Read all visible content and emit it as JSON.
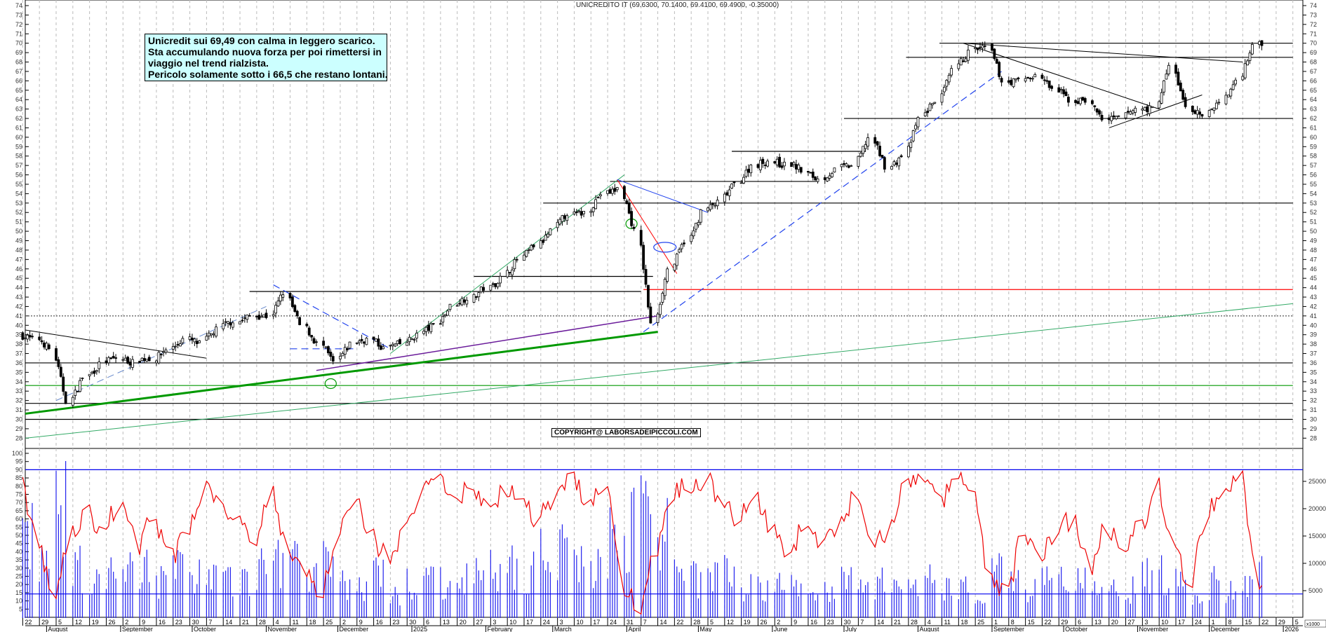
{
  "title": "UNICREDITO IT (69.6300, 70.1400, 69.4100, 69.4900, -0.35000)",
  "note": [
    "Unicredit sui 69,49 con calma in leggero scarico.",
    "Sta accumulando nuova forza per poi rimettersi in",
    "viaggio nel trend rialzista.",
    "Pericolo solamente sotto i 66,5 che restano lontani."
  ],
  "copyright": "COPYRIGHT@ LABORSADEIPICCOLI.COM",
  "volume_unit": "x1000",
  "chart_data": {
    "type": "candlestick",
    "price_ylim": [
      28,
      74
    ],
    "osc_ylim": [
      0,
      100
    ],
    "volume_ylim": [
      0,
      27000
    ],
    "grid": true,
    "week_starts": [
      "2024-07-22",
      "2024-07-29",
      "2024-08-05",
      "2024-08-12",
      "2024-08-19",
      "2024-08-26",
      "2024-09-02",
      "2024-09-09",
      "2024-09-16",
      "2024-09-23",
      "2024-09-30",
      "2024-10-07",
      "2024-10-14",
      "2024-10-21",
      "2024-10-28",
      "2024-11-04",
      "2024-11-11",
      "2024-11-18",
      "2024-11-25",
      "2024-12-02",
      "2024-12-09",
      "2024-12-16",
      "2024-12-23",
      "2024-12-30",
      "2025-01-06",
      "2025-01-13",
      "2025-01-20",
      "2025-01-27",
      "2025-02-03",
      "2025-02-10",
      "2025-02-17",
      "2025-02-24",
      "2025-03-03",
      "2025-03-10",
      "2025-03-17",
      "2025-03-24",
      "2025-03-31",
      "2025-04-07",
      "2025-04-14",
      "2025-04-21",
      "2025-04-28",
      "2025-05-05",
      "2025-05-12",
      "2025-05-19",
      "2025-05-26",
      "2025-06-02",
      "2025-06-09",
      "2025-06-16",
      "2025-06-23",
      "2025-06-30",
      "2025-07-07",
      "2025-07-14",
      "2025-07-21",
      "2025-07-28",
      "2025-08-04",
      "2025-08-11",
      "2025-08-18",
      "2025-08-25",
      "2025-09-01",
      "2025-09-08",
      "2025-09-15",
      "2025-09-22",
      "2025-09-29",
      "2025-10-06",
      "2025-10-13",
      "2025-10-20",
      "2025-10-27",
      "2025-11-03",
      "2025-11-10",
      "2025-11-17",
      "2025-11-24",
      "2025-12-01",
      "2025-12-08",
      "2025-12-15",
      "2025-12-22"
    ],
    "weekly_close": [
      38.5,
      37.5,
      32,
      34.5,
      35.8,
      36.5,
      36,
      36.5,
      37.5,
      38.5,
      38,
      39.5,
      40.5,
      41,
      41,
      43.5,
      40,
      38,
      36,
      38,
      38.5,
      37.5,
      38,
      39,
      40,
      42,
      43,
      44,
      45,
      47,
      48.5,
      50,
      52,
      52,
      54,
      54.5,
      50,
      40,
      46,
      49,
      52,
      53,
      55,
      57,
      57.5,
      57,
      56.5,
      55.5,
      56.5,
      57,
      60,
      57,
      58,
      62,
      64,
      67,
      69,
      69.5,
      66,
      66,
      66.5,
      65,
      64,
      64,
      62,
      62,
      63,
      63,
      67.5,
      63,
      62,
      64,
      66,
      70,
      69.5
    ],
    "weekly_oscillator": [
      85,
      45,
      12,
      50,
      62,
      55,
      70,
      45,
      60,
      35,
      55,
      80,
      70,
      60,
      50,
      75,
      40,
      30,
      15,
      55,
      70,
      50,
      35,
      55,
      75,
      85,
      70,
      80,
      65,
      80,
      70,
      60,
      75,
      85,
      70,
      80,
      20,
      5,
      40,
      75,
      80,
      85,
      70,
      60,
      75,
      50,
      35,
      60,
      45,
      55,
      75,
      40,
      55,
      80,
      85,
      70,
      85,
      75,
      25,
      15,
      50,
      35,
      55,
      60,
      30,
      55,
      45,
      55,
      80,
      40,
      20,
      65,
      75,
      85,
      20
    ],
    "weekly_volume": [
      14,
      10,
      18,
      9,
      6,
      7,
      8,
      9,
      7,
      8,
      9,
      7,
      6,
      7,
      8,
      10,
      12,
      8,
      9,
      6,
      5,
      7,
      4,
      6,
      7,
      6,
      8,
      7,
      8,
      9,
      8,
      11,
      12,
      10,
      9,
      13,
      15,
      25,
      14,
      8,
      7,
      8,
      9,
      6,
      5,
      6,
      5,
      6,
      5,
      6,
      8,
      6,
      5,
      6,
      7,
      5,
      6,
      5,
      9,
      6,
      5,
      6,
      7,
      6,
      5,
      6,
      5,
      7,
      8,
      6,
      4,
      6,
      5,
      7,
      9
    ],
    "levels": [
      {
        "price": 36,
        "color": "#000000",
        "from": "2024-07-22",
        "to": "2026-01-05"
      },
      {
        "price": 31.7,
        "color": "#000000",
        "from": "2024-07-22",
        "to": "2026-01-05"
      },
      {
        "price": 30,
        "color": "#000000",
        "from": "2024-07-22",
        "to": "2026-01-05"
      },
      {
        "price": 33.6,
        "color": "#009900",
        "from": "2024-07-22",
        "to": "2026-01-05"
      },
      {
        "price": 41,
        "color": "#555555",
        "from": "2024-07-22",
        "to": "2026-01-05",
        "dash": true
      },
      {
        "price": 43.8,
        "color": "#ff0000",
        "from": "2025-04-08",
        "to": "2026-01-05"
      },
      {
        "price": 43.6,
        "color": "#000000",
        "from": "2024-10-25",
        "to": "2025-04-07"
      },
      {
        "price": 45.2,
        "color": "#000000",
        "from": "2025-01-27",
        "to": "2025-04-12"
      },
      {
        "price": 53,
        "color": "#000000",
        "from": "2025-02-25",
        "to": "2026-01-05"
      },
      {
        "price": 55.3,
        "color": "#000000",
        "from": "2025-03-25",
        "to": "2025-06-20"
      },
      {
        "price": 58.5,
        "color": "#000000",
        "from": "2025-05-15",
        "to": "2025-07-10"
      },
      {
        "price": 62,
        "color": "#000000",
        "from": "2025-07-01",
        "to": "2026-01-05"
      },
      {
        "price": 68.5,
        "color": "#000000",
        "from": "2025-07-27",
        "to": "2026-01-05"
      },
      {
        "price": 70,
        "color": "#000000",
        "from": "2025-08-10",
        "to": "2026-01-05"
      }
    ],
    "trendlines": [
      {
        "from": [
          "2024-07-22",
          30.6
        ],
        "to": [
          "2025-04-14",
          39.3
        ],
        "color": "#009900",
        "width": 3
      },
      {
        "from": [
          "2024-07-22",
          28
        ],
        "to": [
          "2026-01-05",
          42.3
        ],
        "color": "#33aa66",
        "width": 1
      },
      {
        "from": [
          "2024-11-22",
          35.2
        ],
        "to": [
          "2025-04-14",
          41
        ],
        "color": "#6a1b9a",
        "width": 1.5
      },
      {
        "from": [
          "2025-04-08",
          39.3
        ],
        "to": [
          "2025-09-05",
          67
        ],
        "color": "#2244ee",
        "width": 1.2,
        "dash": true
      },
      {
        "from": [
          "2024-11-04",
          44.3
        ],
        "to": [
          "2024-12-23",
          37.5
        ],
        "color": "#2244ee",
        "width": 1.2,
        "dash": true
      },
      {
        "from": [
          "2024-11-11",
          37.5
        ],
        "to": [
          "2024-12-09",
          37.5
        ],
        "color": "#2244ee",
        "width": 1.2,
        "dash": true
      },
      {
        "from": [
          "2024-07-22",
          39.5
        ],
        "to": [
          "2024-10-07",
          36.5
        ],
        "color": "#000000",
        "width": 1
      },
      {
        "from": [
          "2024-08-05",
          32
        ],
        "to": [
          "2024-11-01",
          42
        ],
        "color": "#6688cc",
        "width": 1,
        "dash": true
      },
      {
        "from": [
          "2024-12-23",
          37
        ],
        "to": [
          "2025-03-31",
          56
        ],
        "color": "#33aa66",
        "width": 1
      },
      {
        "from": [
          "2025-03-28",
          55.5
        ],
        "to": [
          "2025-04-22",
          45.5
        ],
        "color": "#ff0000",
        "width": 1
      },
      {
        "from": [
          "2025-03-28",
          55.5
        ],
        "to": [
          "2025-05-05",
          52
        ],
        "color": "#2244ee",
        "width": 1
      },
      {
        "from": [
          "2025-08-20",
          70
        ],
        "to": [
          "2025-11-10",
          63
        ],
        "color": "#000000",
        "width": 1
      },
      {
        "from": [
          "2025-08-20",
          70
        ],
        "to": [
          "2025-12-15",
          68
        ],
        "color": "#000000",
        "width": 1
      },
      {
        "from": [
          "2025-10-20",
          61
        ],
        "to": [
          "2025-11-28",
          64.5
        ],
        "color": "#000000",
        "width": 1
      }
    ],
    "ellipses": [
      {
        "at": [
          "2024-11-28",
          33.8
        ],
        "color": "#009900"
      },
      {
        "at": [
          "2025-04-03",
          50.8
        ],
        "color": "#009900"
      },
      {
        "at": [
          "2025-04-17",
          48.3
        ],
        "color": "#2244ee"
      }
    ],
    "osc_levels": [
      90
    ],
    "volume_levels": [
      4400
    ],
    "day_ticks": [
      "22",
      "29",
      "5",
      "12",
      "19",
      "26",
      "2",
      "9",
      "16",
      "23",
      "30",
      "7",
      "14",
      "21",
      "28",
      "4",
      "11",
      "18",
      "25",
      "2",
      "9",
      "16",
      "23",
      "30",
      "6",
      "13",
      "20",
      "27",
      "3",
      "10",
      "17",
      "24",
      "3",
      "10",
      "17",
      "24",
      "31",
      "7",
      "14",
      "22",
      "28",
      "5",
      "12",
      "19",
      "26",
      "2",
      "9",
      "16",
      "23",
      "30",
      "7",
      "14",
      "21",
      "28",
      "4",
      "11",
      "18",
      "25",
      "1",
      "8",
      "15",
      "22",
      "29",
      "6",
      "13",
      "20",
      "27",
      "3",
      "10",
      "17",
      "24",
      "1",
      "8",
      "15",
      "22",
      "29",
      "5"
    ],
    "months": [
      [
        "August",
        "2024-08-01"
      ],
      [
        "September",
        "2024-09-01"
      ],
      [
        "October",
        "2024-10-01"
      ],
      [
        "November",
        "2024-11-01"
      ],
      [
        "December",
        "2024-12-01"
      ],
      [
        "2025",
        "2025-01-01"
      ],
      [
        "February",
        "2025-02-01"
      ],
      [
        "March",
        "2025-03-01"
      ],
      [
        "April",
        "2025-04-01"
      ],
      [
        "May",
        "2025-05-01"
      ],
      [
        "June",
        "2025-06-01"
      ],
      [
        "July",
        "2025-07-01"
      ],
      [
        "August",
        "2025-08-01"
      ],
      [
        "September",
        "2025-09-01"
      ],
      [
        "October",
        "2025-10-01"
      ],
      [
        "November",
        "2025-11-01"
      ],
      [
        "December",
        "2025-12-01"
      ],
      [
        "2026",
        "2026-01-01"
      ]
    ]
  }
}
